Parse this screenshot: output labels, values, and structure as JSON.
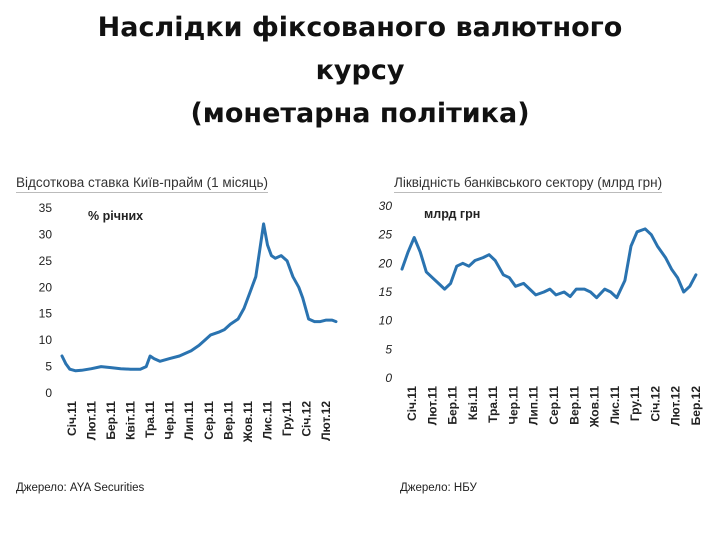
{
  "slide": {
    "title_lines": [
      "Наслідки фіксованого валютного",
      "курсу",
      "(монетарна політика)"
    ]
  },
  "chart_data": [
    {
      "type": "line",
      "title": "Відсоткова ставка Київ-прайм (1 місяць)",
      "unit_label": "% річних",
      "source": "Джерело: AYA Securities",
      "ylim": [
        0,
        35
      ],
      "y_ticks": [
        "0",
        "5",
        "10",
        "15",
        "20",
        "25",
        "30",
        "35"
      ],
      "x_ticks": [
        "Січ.11",
        "Лют.11",
        "Бер.11",
        "Квіт.11",
        "Тра.11",
        "Чер.11",
        "Лип.11",
        "Сер.11",
        "Вер.11",
        "Жов.11",
        "Лис.11",
        "Гру.11",
        "Січ.12",
        "Лют.12"
      ],
      "x_range": [
        0,
        14
      ],
      "grid": false,
      "legend": "none",
      "color": "#2a73b0",
      "series": [
        {
          "points": [
            [
              0,
              7
            ],
            [
              0.2,
              5.5
            ],
            [
              0.4,
              4.5
            ],
            [
              0.7,
              4.2
            ],
            [
              1,
              4.3
            ],
            [
              1.5,
              4.6
            ],
            [
              2,
              5
            ],
            [
              2.5,
              4.8
            ],
            [
              3,
              4.6
            ],
            [
              3.5,
              4.5
            ],
            [
              4,
              4.5
            ],
            [
              4.3,
              5
            ],
            [
              4.5,
              7
            ],
            [
              4.7,
              6.5
            ],
            [
              5,
              6
            ],
            [
              5.5,
              6.5
            ],
            [
              6,
              7
            ],
            [
              6.3,
              7.5
            ],
            [
              6.6,
              8
            ],
            [
              7,
              9
            ],
            [
              7.3,
              10
            ],
            [
              7.6,
              11
            ],
            [
              8,
              11.5
            ],
            [
              8.3,
              12
            ],
            [
              8.6,
              13
            ],
            [
              9,
              14
            ],
            [
              9.3,
              16
            ],
            [
              9.6,
              19
            ],
            [
              9.9,
              22
            ],
            [
              10.1,
              27
            ],
            [
              10.3,
              32
            ],
            [
              10.5,
              28
            ],
            [
              10.7,
              26
            ],
            [
              10.9,
              25.5
            ],
            [
              11.2,
              26
            ],
            [
              11.5,
              25
            ],
            [
              11.8,
              22
            ],
            [
              12.1,
              20
            ],
            [
              12.3,
              18
            ],
            [
              12.6,
              14
            ],
            [
              12.9,
              13.5
            ],
            [
              13.2,
              13.5
            ],
            [
              13.5,
              13.8
            ],
            [
              13.8,
              13.8
            ],
            [
              14,
              13.5
            ]
          ]
        }
      ]
    },
    {
      "type": "line",
      "title": "Ліквідність банківського сектору (млрд грн)",
      "unit_label": "млрд грн",
      "source": "Джерело: НБУ",
      "ylim": [
        0,
        30
      ],
      "y_ticks": [
        "0",
        "5",
        "10",
        "15",
        "20",
        "25",
        "30"
      ],
      "x_ticks": [
        "Січ.11",
        "Лют.11",
        "Бер.11",
        "Кві.11",
        "Тра.11",
        "Чер.11",
        "Лип.11",
        "Сер.11",
        "Вер.11",
        "Жов.11",
        "Лис.11",
        "Гру.11",
        "Січ.12",
        "Лют.12",
        "Бер.12"
      ],
      "x_range": [
        0,
        15
      ],
      "grid": false,
      "legend": "none",
      "color": "#2a73b0",
      "series": [
        {
          "points": [
            [
              0,
              19
            ],
            [
              0.3,
              22
            ],
            [
              0.6,
              24.5
            ],
            [
              0.9,
              22
            ],
            [
              1.2,
              18.5
            ],
            [
              1.5,
              17.5
            ],
            [
              1.8,
              16.5
            ],
            [
              2.1,
              15.5
            ],
            [
              2.4,
              16.5
            ],
            [
              2.7,
              19.5
            ],
            [
              3,
              20
            ],
            [
              3.3,
              19.5
            ],
            [
              3.6,
              20.5
            ],
            [
              4,
              21
            ],
            [
              4.3,
              21.5
            ],
            [
              4.6,
              20.5
            ],
            [
              5,
              18
            ],
            [
              5.3,
              17.5
            ],
            [
              5.6,
              16
            ],
            [
              6,
              16.5
            ],
            [
              6.3,
              15.5
            ],
            [
              6.6,
              14.5
            ],
            [
              7,
              15
            ],
            [
              7.3,
              15.5
            ],
            [
              7.6,
              14.5
            ],
            [
              8,
              15
            ],
            [
              8.3,
              14.2
            ],
            [
              8.6,
              15.5
            ],
            [
              9,
              15.5
            ],
            [
              9.3,
              15
            ],
            [
              9.6,
              14
            ],
            [
              10,
              15.5
            ],
            [
              10.3,
              15
            ],
            [
              10.6,
              14
            ],
            [
              11,
              17
            ],
            [
              11.3,
              23
            ],
            [
              11.6,
              25.5
            ],
            [
              12,
              26
            ],
            [
              12.3,
              25
            ],
            [
              12.6,
              23
            ],
            [
              13,
              21
            ],
            [
              13.3,
              19
            ],
            [
              13.6,
              17.5
            ],
            [
              13.9,
              15
            ],
            [
              14.2,
              16
            ],
            [
              14.5,
              18
            ]
          ]
        }
      ]
    }
  ]
}
